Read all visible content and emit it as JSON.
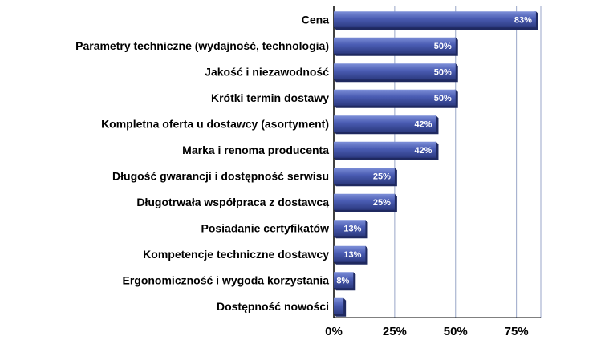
{
  "chart_data": {
    "type": "bar",
    "orientation": "horizontal",
    "categories": [
      "Cena",
      "Parametry techniczne (wydajność, technologia)",
      "Jakość i niezawodność",
      "Krótki termin dostawy",
      "Kompletna oferta u dostawcy (asortyment)",
      "Marka i renoma producenta",
      "Długość gwarancji i dostępność serwisu",
      "Długotrwała współpraca z dostawcą",
      "Posiadanie certyfikatów",
      "Kompetencje techniczne dostawcy",
      "Ergonomiczność i wygoda korzystania",
      "Dostępność nowości"
    ],
    "values": [
      83,
      50,
      50,
      50,
      42,
      42,
      25,
      25,
      13,
      13,
      8,
      4
    ],
    "data_labels": [
      "83%",
      "50%",
      "50%",
      "50%",
      "42%",
      "42%",
      "25%",
      "25%",
      "13%",
      "13%",
      "8%",
      ""
    ],
    "xlim": [
      0,
      85
    ],
    "x_ticks": [
      0,
      25,
      50,
      75
    ],
    "x_tick_labels": [
      "0%",
      "25%",
      "50%",
      "75%"
    ],
    "grid": true,
    "bar_color": "#4a5cb3",
    "bar_color_light": "#7d8fd8",
    "bar_color_dark": "#2c3a80",
    "grid_color": "#9aa6c8"
  }
}
